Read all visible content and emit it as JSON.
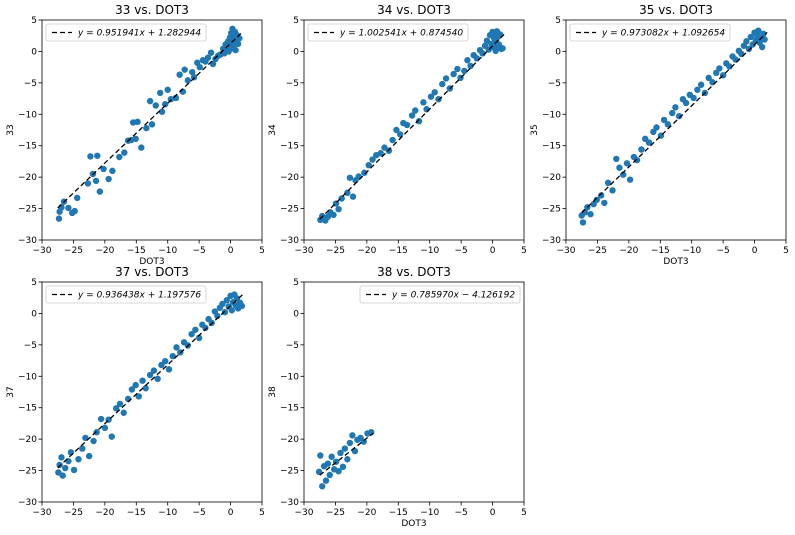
{
  "figure": {
    "colors": {
      "points": "#1f77b4",
      "fit_line": "#000000",
      "axes": "#000000",
      "legend_border": "#cccccc",
      "background": "#ffffff"
    }
  },
  "chart_data": [
    {
      "type": "scatter",
      "title": "33 vs. DOT3",
      "xlabel": "DOT3",
      "ylabel": "33",
      "xlim": [
        -30,
        5
      ],
      "ylim": [
        -30,
        5
      ],
      "xticks": [
        "−30",
        "−25",
        "−20",
        "−15",
        "−10",
        "−5",
        "0",
        "5"
      ],
      "yticks": [
        "−30",
        "−25",
        "−20",
        "−15",
        "−10",
        "−5",
        "0",
        "5"
      ],
      "legend": {
        "label": "y = 0.951941x + 1.282944",
        "placement": "upper left"
      },
      "fit": {
        "slope": 0.951941,
        "intercept": 1.282944,
        "x_range": [
          -27.5,
          2
        ]
      },
      "points": [
        [
          -27.3,
          -26.6
        ],
        [
          -27.2,
          -25.5
        ],
        [
          -26.9,
          -24.8
        ],
        [
          -26.5,
          -23.9
        ],
        [
          -25.8,
          -24.9
        ],
        [
          -25.2,
          -25.7
        ],
        [
          -24.8,
          -25.4
        ],
        [
          -24.4,
          -23.3
        ],
        [
          -22.7,
          -21.0
        ],
        [
          -22.3,
          -16.7
        ],
        [
          -21.9,
          -19.5
        ],
        [
          -21.4,
          -20.6
        ],
        [
          -21.2,
          -16.6
        ],
        [
          -20.8,
          -22.3
        ],
        [
          -20.2,
          -18.7
        ],
        [
          -19.4,
          -20.3
        ],
        [
          -18.8,
          -19.0
        ],
        [
          -17.7,
          -16.8
        ],
        [
          -16.9,
          -16.1
        ],
        [
          -16.3,
          -14.2
        ],
        [
          -15.8,
          -14.1
        ],
        [
          -15.5,
          -11.3
        ],
        [
          -15.1,
          -13.9
        ],
        [
          -14.8,
          -11.2
        ],
        [
          -14.2,
          -15.3
        ],
        [
          -13.4,
          -12.2
        ],
        [
          -12.8,
          -7.9
        ],
        [
          -12.5,
          -11.6
        ],
        [
          -11.9,
          -8.6
        ],
        [
          -11.2,
          -6.6
        ],
        [
          -10.9,
          -9.6
        ],
        [
          -10.4,
          -8.4
        ],
        [
          -10.0,
          -6.1
        ],
        [
          -9.5,
          -7.6
        ],
        [
          -8.7,
          -7.4
        ],
        [
          -8.1,
          -3.7
        ],
        [
          -7.6,
          -6.4
        ],
        [
          -7.3,
          -2.9
        ],
        [
          -6.8,
          -4.6
        ],
        [
          -6.1,
          -3.3
        ],
        [
          -5.8,
          -4.1
        ],
        [
          -5.3,
          -1.8
        ],
        [
          -4.9,
          -2.5
        ],
        [
          -4.4,
          -1.4
        ],
        [
          -4.0,
          -1.6
        ],
        [
          -3.6,
          -1.0
        ],
        [
          -3.1,
          -0.2
        ],
        [
          -2.8,
          -2.0
        ],
        [
          -2.4,
          -1.2
        ],
        [
          -2.0,
          -0.7
        ],
        [
          -1.6,
          -0.5
        ],
        [
          -1.2,
          0.4
        ],
        [
          -1.0,
          -0.3
        ],
        [
          -0.8,
          1.1
        ],
        [
          -0.6,
          0.6
        ],
        [
          -0.4,
          1.6
        ],
        [
          -0.3,
          0.0
        ],
        [
          -0.1,
          2.2
        ],
        [
          0.0,
          1.3
        ],
        [
          0.1,
          2.9
        ],
        [
          0.2,
          0.5
        ],
        [
          0.3,
          3.6
        ],
        [
          0.4,
          2.5
        ],
        [
          0.5,
          0.9
        ],
        [
          0.6,
          1.9
        ],
        [
          0.7,
          3.1
        ],
        [
          0.8,
          0.2
        ],
        [
          0.9,
          1.5
        ],
        [
          1.0,
          2.6
        ],
        [
          1.2,
          1.2
        ],
        [
          1.4,
          2.1
        ]
      ]
    },
    {
      "type": "scatter",
      "title": "34 vs. DOT3",
      "xlabel": "",
      "ylabel": "34",
      "xlim": [
        -30,
        5
      ],
      "ylim": [
        -30,
        5
      ],
      "xticks": [
        "−30",
        "−25",
        "−20",
        "−15",
        "−10",
        "−5",
        "0",
        "5"
      ],
      "yticks": [
        "−30",
        "−25",
        "−20",
        "−15",
        "−10",
        "−5",
        "0",
        "5"
      ],
      "legend": {
        "label": "y = 1.002541x + 0.874540",
        "placement": "upper left"
      },
      "fit": {
        "slope": 1.002541,
        "intercept": 0.87454,
        "x_range": [
          -27.5,
          2
        ]
      },
      "points": [
        [
          -27.4,
          -26.8
        ],
        [
          -27.1,
          -26.2
        ],
        [
          -26.6,
          -26.9
        ],
        [
          -26.2,
          -26.3
        ],
        [
          -25.8,
          -25.6
        ],
        [
          -25.3,
          -26.0
        ],
        [
          -24.9,
          -24.2
        ],
        [
          -24.5,
          -25.1
        ],
        [
          -24.0,
          -23.4
        ],
        [
          -23.1,
          -22.5
        ],
        [
          -22.7,
          -20.1
        ],
        [
          -22.2,
          -23.1
        ],
        [
          -21.8,
          -20.5
        ],
        [
          -21.3,
          -19.9
        ],
        [
          -20.4,
          -19.3
        ],
        [
          -19.7,
          -18.1
        ],
        [
          -19.1,
          -17.2
        ],
        [
          -18.5,
          -16.5
        ],
        [
          -17.8,
          -16.2
        ],
        [
          -17.2,
          -15.3
        ],
        [
          -16.5,
          -15.8
        ],
        [
          -15.9,
          -14.1
        ],
        [
          -15.3,
          -12.5
        ],
        [
          -14.7,
          -13.2
        ],
        [
          -14.2,
          -11.4
        ],
        [
          -13.6,
          -11.7
        ],
        [
          -12.8,
          -10.2
        ],
        [
          -12.3,
          -9.4
        ],
        [
          -11.7,
          -11.1
        ],
        [
          -11.0,
          -8.1
        ],
        [
          -10.5,
          -9.2
        ],
        [
          -9.8,
          -7.2
        ],
        [
          -9.2,
          -6.5
        ],
        [
          -8.6,
          -7.6
        ],
        [
          -8.0,
          -5.2
        ],
        [
          -7.4,
          -4.3
        ],
        [
          -6.8,
          -5.9
        ],
        [
          -6.2,
          -3.6
        ],
        [
          -5.6,
          -2.8
        ],
        [
          -5.1,
          -4.2
        ],
        [
          -4.5,
          -3.1
        ],
        [
          -4.0,
          -1.4
        ],
        [
          -3.5,
          -2.3
        ],
        [
          -3.0,
          -0.6
        ],
        [
          -2.5,
          -1.1
        ],
        [
          -2.0,
          0.2
        ],
        [
          -1.6,
          -0.3
        ],
        [
          -1.2,
          0.9
        ],
        [
          -0.9,
          1.7
        ],
        [
          -0.6,
          0.3
        ],
        [
          -0.4,
          2.6
        ],
        [
          -0.2,
          1.2
        ],
        [
          0.0,
          3.1
        ],
        [
          0.1,
          0.7
        ],
        [
          0.2,
          2.2
        ],
        [
          0.3,
          1.5
        ],
        [
          0.4,
          2.9
        ],
        [
          0.5,
          0.1
        ],
        [
          0.6,
          1.9
        ],
        [
          0.7,
          3.2
        ],
        [
          0.8,
          0.6
        ],
        [
          0.9,
          2.4
        ],
        [
          1.0,
          1.1
        ],
        [
          1.2,
          2.7
        ],
        [
          1.4,
          0.4
        ],
        [
          1.6,
          0.5
        ]
      ]
    },
    {
      "type": "scatter",
      "title": "35 vs. DOT3",
      "xlabel": "DOT3",
      "ylabel": "35",
      "xlim": [
        -30,
        5
      ],
      "ylim": [
        -30,
        5
      ],
      "xticks": [
        "−30",
        "−25",
        "−20",
        "−15",
        "−10",
        "−5",
        "0",
        "5"
      ],
      "yticks": [
        "−30",
        "−25",
        "−20",
        "−15",
        "−10",
        "−5",
        "0",
        "5"
      ],
      "legend": {
        "label": "y = 0.973082x + 1.092654",
        "placement": "upper left"
      },
      "fit": {
        "slope": 0.973082,
        "intercept": 1.092654,
        "x_range": [
          -27.5,
          2
        ]
      },
      "points": [
        [
          -27.5,
          -26.1
        ],
        [
          -27.3,
          -27.2
        ],
        [
          -27.0,
          -25.6
        ],
        [
          -26.6,
          -24.8
        ],
        [
          -26.1,
          -25.9
        ],
        [
          -25.6,
          -24.3
        ],
        [
          -25.1,
          -23.6
        ],
        [
          -24.4,
          -22.9
        ],
        [
          -23.9,
          -24.1
        ],
        [
          -23.3,
          -20.9
        ],
        [
          -22.6,
          -22.1
        ],
        [
          -22.0,
          -17.1
        ],
        [
          -21.5,
          -18.5
        ],
        [
          -20.9,
          -19.6
        ],
        [
          -20.3,
          -17.8
        ],
        [
          -19.8,
          -20.4
        ],
        [
          -19.2,
          -16.8
        ],
        [
          -18.7,
          -17.3
        ],
        [
          -18.0,
          -15.6
        ],
        [
          -17.4,
          -13.9
        ],
        [
          -16.8,
          -14.5
        ],
        [
          -16.1,
          -12.8
        ],
        [
          -15.6,
          -12.1
        ],
        [
          -14.9,
          -13.4
        ],
        [
          -14.4,
          -10.9
        ],
        [
          -13.8,
          -11.6
        ],
        [
          -13.1,
          -9.8
        ],
        [
          -12.6,
          -8.9
        ],
        [
          -12.0,
          -10.3
        ],
        [
          -11.4,
          -7.6
        ],
        [
          -10.9,
          -8.2
        ],
        [
          -10.3,
          -6.9
        ],
        [
          -9.7,
          -7.4
        ],
        [
          -9.1,
          -6.1
        ],
        [
          -8.5,
          -5.3
        ],
        [
          -7.9,
          -6.6
        ],
        [
          -7.3,
          -4.2
        ],
        [
          -6.7,
          -4.9
        ],
        [
          -6.1,
          -3.4
        ],
        [
          -5.6,
          -2.7
        ],
        [
          -5.0,
          -3.8
        ],
        [
          -4.5,
          -1.9
        ],
        [
          -4.0,
          -2.4
        ],
        [
          -3.5,
          -0.8
        ],
        [
          -3.0,
          -1.3
        ],
        [
          -2.5,
          0.1
        ],
        [
          -2.1,
          -0.4
        ],
        [
          -1.7,
          0.9
        ],
        [
          -1.3,
          1.6
        ],
        [
          -0.9,
          0.4
        ],
        [
          -0.6,
          2.3
        ],
        [
          -0.3,
          1.1
        ],
        [
          0.0,
          3.0
        ],
        [
          0.2,
          1.8
        ],
        [
          0.4,
          2.6
        ],
        [
          0.6,
          3.3
        ],
        [
          0.8,
          1.4
        ],
        [
          1.0,
          2.1
        ],
        [
          1.2,
          0.7
        ],
        [
          1.4,
          2.8
        ],
        [
          1.6,
          1.9
        ]
      ]
    },
    {
      "type": "scatter",
      "title": "37 vs. DOT3",
      "xlabel": "",
      "ylabel": "37",
      "xlim": [
        -30,
        5
      ],
      "ylim": [
        -30,
        5
      ],
      "xticks": [
        "−30",
        "−25",
        "−20",
        "−15",
        "−10",
        "−5",
        "0",
        "5"
      ],
      "yticks": [
        "−30",
        "−25",
        "−20",
        "−15",
        "−10",
        "−5",
        "0",
        "5"
      ],
      "legend": {
        "label": "y = 0.936438x + 1.197576",
        "placement": "upper left"
      },
      "fit": {
        "slope": 0.936438,
        "intercept": 1.197576,
        "x_range": [
          -27.5,
          2
        ]
      },
      "points": [
        [
          -27.4,
          -25.3
        ],
        [
          -27.2,
          -24.1
        ],
        [
          -26.9,
          -22.9
        ],
        [
          -26.7,
          -25.8
        ],
        [
          -26.3,
          -24.6
        ],
        [
          -25.8,
          -23.5
        ],
        [
          -25.4,
          -22.1
        ],
        [
          -24.9,
          -24.9
        ],
        [
          -24.2,
          -23.2
        ],
        [
          -23.6,
          -21.5
        ],
        [
          -23.1,
          -19.8
        ],
        [
          -22.5,
          -22.7
        ],
        [
          -21.8,
          -20.3
        ],
        [
          -21.3,
          -18.9
        ],
        [
          -20.6,
          -16.8
        ],
        [
          -20.0,
          -18.2
        ],
        [
          -19.4,
          -16.9
        ],
        [
          -18.9,
          -19.6
        ],
        [
          -18.2,
          -15.1
        ],
        [
          -17.6,
          -14.4
        ],
        [
          -17.0,
          -15.8
        ],
        [
          -16.3,
          -13.6
        ],
        [
          -15.7,
          -12.1
        ],
        [
          -15.1,
          -11.4
        ],
        [
          -14.6,
          -13.2
        ],
        [
          -14.0,
          -10.7
        ],
        [
          -13.5,
          -11.9
        ],
        [
          -12.8,
          -9.8
        ],
        [
          -12.2,
          -9.1
        ],
        [
          -11.6,
          -10.4
        ],
        [
          -11.0,
          -8.2
        ],
        [
          -10.4,
          -7.6
        ],
        [
          -9.8,
          -8.9
        ],
        [
          -9.2,
          -6.8
        ],
        [
          -8.6,
          -5.4
        ],
        [
          -8.0,
          -6.2
        ],
        [
          -7.4,
          -4.6
        ],
        [
          -6.8,
          -5.1
        ],
        [
          -6.2,
          -3.3
        ],
        [
          -5.6,
          -2.6
        ],
        [
          -5.0,
          -3.9
        ],
        [
          -4.5,
          -1.8
        ],
        [
          -4.0,
          -2.3
        ],
        [
          -3.5,
          -0.9
        ],
        [
          -3.0,
          -1.5
        ],
        [
          -2.5,
          0.3
        ],
        [
          -2.1,
          -0.4
        ],
        [
          -1.7,
          0.9
        ],
        [
          -1.3,
          1.5
        ],
        [
          -0.9,
          0.2
        ],
        [
          -0.6,
          2.1
        ],
        [
          -0.3,
          1.1
        ],
        [
          0.0,
          2.8
        ],
        [
          0.2,
          0.5
        ],
        [
          0.4,
          1.8
        ],
        [
          0.6,
          3.0
        ],
        [
          0.8,
          1.3
        ],
        [
          1.0,
          2.4
        ],
        [
          1.2,
          0.8
        ],
        [
          1.5,
          1.7
        ],
        [
          1.8,
          1.2
        ]
      ]
    },
    {
      "type": "scatter",
      "title": "38 vs. DOT3",
      "xlabel": "DOT3",
      "ylabel": "38",
      "xlim": [
        -30,
        5
      ],
      "ylim": [
        -30,
        5
      ],
      "xticks": [
        "−30",
        "−25",
        "−20",
        "−15",
        "−10",
        "−5",
        "0",
        "5"
      ],
      "yticks": [
        "−30",
        "−25",
        "−20",
        "−15",
        "−10",
        "−5",
        "0",
        "5"
      ],
      "legend": {
        "label": "y = 0.785970x − 4.126192",
        "placement": "upper right"
      },
      "fit": {
        "slope": 0.78597,
        "intercept": -4.126192,
        "x_range": [
          -27.5,
          -19
        ]
      },
      "points": [
        [
          -27.6,
          -25.2
        ],
        [
          -27.4,
          -22.6
        ],
        [
          -27.1,
          -27.5
        ],
        [
          -26.8,
          -24.3
        ],
        [
          -26.5,
          -26.6
        ],
        [
          -26.2,
          -23.9
        ],
        [
          -25.9,
          -25.7
        ],
        [
          -25.6,
          -22.8
        ],
        [
          -25.2,
          -24.8
        ],
        [
          -24.9,
          -23.6
        ],
        [
          -24.5,
          -25.1
        ],
        [
          -24.2,
          -22.2
        ],
        [
          -23.8,
          -24.4
        ],
        [
          -23.5,
          -21.5
        ],
        [
          -23.1,
          -23.2
        ],
        [
          -22.7,
          -20.6
        ],
        [
          -22.3,
          -19.4
        ],
        [
          -21.9,
          -21.9
        ],
        [
          -21.5,
          -20.1
        ],
        [
          -21.0,
          -19.8
        ],
        [
          -20.5,
          -20.4
        ],
        [
          -19.9,
          -19.1
        ],
        [
          -19.3,
          -18.9
        ]
      ]
    }
  ]
}
